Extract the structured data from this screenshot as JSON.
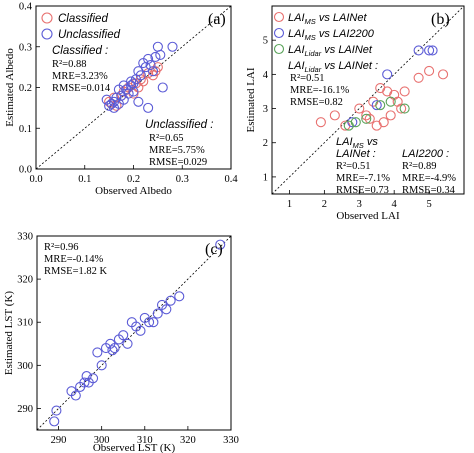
{
  "chart_data": [
    {
      "type": "scatter",
      "panel_label": "(a)",
      "xlabel": "Observed Albedo",
      "ylabel": "Estimated Albedo",
      "xlim": [
        0.0,
        0.4
      ],
      "ylim": [
        0.0,
        0.4
      ],
      "xticks": [
        "0.0",
        "0.1",
        "0.2",
        "0.3",
        "0.4"
      ],
      "yticks": [
        "0.0",
        "0.1",
        "0.2",
        "0.3",
        "0.4"
      ],
      "reference_line": "1:1",
      "legend": {
        "location": "top-left",
        "entries": [
          "Classified",
          "Unclassified"
        ]
      },
      "series": [
        {
          "name": "Classified",
          "color": "#e8706f",
          "x": [
            0.15,
            0.155,
            0.16,
            0.165,
            0.175,
            0.18,
            0.19,
            0.2,
            0.205,
            0.21,
            0.215,
            0.22,
            0.23,
            0.24,
            0.245,
            0.25
          ],
          "y": [
            0.165,
            0.16,
            0.175,
            0.155,
            0.18,
            0.19,
            0.2,
            0.185,
            0.21,
            0.2,
            0.22,
            0.215,
            0.235,
            0.23,
            0.24,
            0.25
          ]
        },
        {
          "name": "Unclassified",
          "color": "#5b5bd6",
          "x": [
            0.145,
            0.15,
            0.155,
            0.16,
            0.16,
            0.165,
            0.17,
            0.175,
            0.18,
            0.185,
            0.19,
            0.195,
            0.2,
            0.2,
            0.205,
            0.21,
            0.215,
            0.22,
            0.225,
            0.23,
            0.235,
            0.24,
            0.245,
            0.25,
            0.255,
            0.26,
            0.23,
            0.21,
            0.195,
            0.18,
            0.17,
            0.28
          ],
          "y": [
            0.17,
            0.155,
            0.16,
            0.165,
            0.15,
            0.175,
            0.16,
            0.18,
            0.17,
            0.195,
            0.185,
            0.205,
            0.21,
            0.19,
            0.22,
            0.24,
            0.23,
            0.26,
            0.25,
            0.27,
            0.255,
            0.24,
            0.275,
            0.3,
            0.28,
            0.2,
            0.15,
            0.165,
            0.215,
            0.205,
            0.195,
            0.3
          ]
        }
      ],
      "annotations": [
        {
          "title": "Classified :",
          "lines": [
            "R²=0.88",
            "MRE=3.23%",
            "RMSE=0.014"
          ]
        },
        {
          "title": "Unclassified :",
          "lines": [
            "R²=0.65",
            "MRE=5.75%",
            "RMSE=0.029"
          ]
        }
      ]
    },
    {
      "type": "scatter",
      "panel_label": "(b)",
      "xlabel": "Observed LAI",
      "ylabel": "Estimated LAI",
      "xlim": [
        0.5,
        6.0
      ],
      "ylim": [
        0.5,
        6.0
      ],
      "xticks": [
        "1",
        "2",
        "3",
        "4",
        "5"
      ],
      "yticks": [
        "1",
        "2",
        "3",
        "4",
        "5"
      ],
      "reference_line": "1:1",
      "legend": {
        "location": "top-left",
        "entries": [
          "LAI_MS vs LAINet",
          "LAI_MS vs LAI2200",
          "LAI_Lidar vs LAINet"
        ]
      },
      "series": [
        {
          "name": "LAI_MS vs LAINet",
          "color": "#e8706f",
          "x": [
            1.9,
            2.3,
            2.6,
            3.0,
            3.2,
            3.4,
            3.5,
            3.6,
            3.8,
            3.9,
            4.0,
            4.1,
            4.2,
            4.3,
            4.7,
            5.0,
            5.4,
            3.7,
            3.3
          ],
          "y": [
            2.6,
            2.8,
            2.5,
            3.0,
            2.8,
            3.2,
            2.5,
            3.6,
            3.5,
            2.8,
            3.4,
            3.2,
            3.0,
            3.5,
            3.9,
            4.1,
            4.0,
            2.6,
            2.7
          ]
        },
        {
          "name": "LAI_MS vs LAI2200",
          "color": "#5b5bd6",
          "x": [
            2.8,
            3.5,
            3.8,
            4.7,
            5.0,
            5.1
          ],
          "y": [
            2.6,
            3.1,
            4.0,
            4.7,
            4.7,
            4.7
          ]
        },
        {
          "name": "LAI_Lidar vs LAINet",
          "color": "#5aa35a",
          "x": [
            2.7,
            2.9,
            3.2,
            3.6,
            3.9,
            4.3
          ],
          "y": [
            2.5,
            2.6,
            2.7,
            3.1,
            3.2,
            3.0
          ]
        }
      ],
      "annotations": [
        {
          "title": "LAI_Lidar vs LAINet :",
          "lines": [
            "R²=0.51",
            "MRE=-16.1%",
            "RMSE=0.82"
          ]
        },
        {
          "title": "LAI_MS vs LAINet :",
          "lines": [
            "R²=0.51",
            "MRE=-7.1%",
            "RMSE=0.73"
          ]
        },
        {
          "title": "LAI2200 :",
          "lines": [
            "R²=0.89",
            "MRE=-4.9%",
            "RMSE=0.34"
          ]
        }
      ]
    },
    {
      "type": "scatter",
      "panel_label": "(c)",
      "xlabel": "Observed LST (K)",
      "ylabel": "Estimated LST (K)",
      "xlim": [
        285,
        330
      ],
      "ylim": [
        285,
        330
      ],
      "xticks": [
        "290",
        "300",
        "310",
        "320",
        "330"
      ],
      "yticks": [
        "290",
        "300",
        "310",
        "320",
        "330"
      ],
      "reference_line": "1:1",
      "series": [
        {
          "name": "",
          "color": "#5b5bd6",
          "x": [
            289,
            289.5,
            293,
            294,
            295,
            296,
            296.5,
            297,
            298,
            299,
            300,
            301,
            302,
            302.5,
            303,
            304,
            305,
            306,
            307,
            308,
            309,
            310,
            311,
            312,
            313,
            314,
            315,
            316,
            318,
            327.5
          ],
          "y": [
            287,
            289.5,
            294,
            293,
            295,
            296,
            297.5,
            296,
            297,
            303,
            300,
            304,
            305,
            303.5,
            304,
            306,
            307,
            305,
            310,
            309,
            308,
            311,
            310,
            310,
            312,
            314,
            313,
            315,
            316,
            328
          ]
        }
      ],
      "annotations": [
        {
          "title": "",
          "lines": [
            "R²=0.96",
            "MRE=-0.14%",
            "RMSE=1.82 K"
          ]
        }
      ]
    }
  ]
}
